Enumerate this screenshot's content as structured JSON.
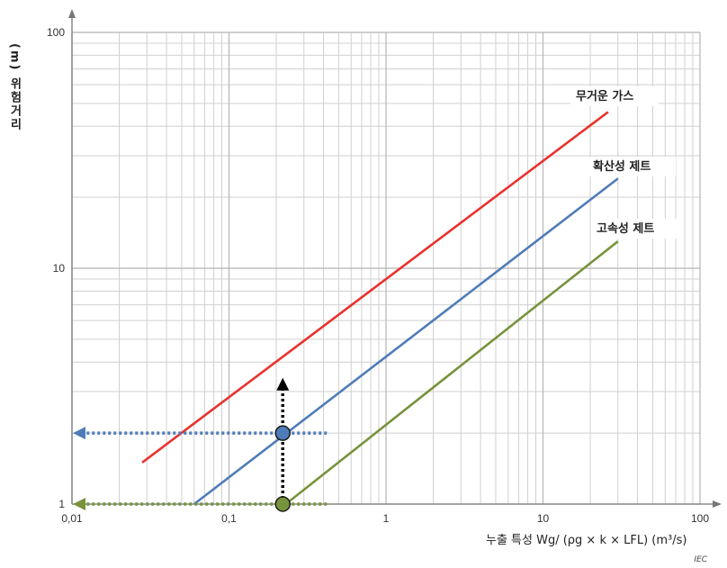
{
  "chart_data": {
    "type": "line",
    "x_scale": "log",
    "y_scale": "log",
    "xlim": [
      0.01,
      100
    ],
    "ylim": [
      1,
      100
    ],
    "x_ticks": [
      "0,01",
      "0,1",
      "1",
      "10",
      "100"
    ],
    "y_ticks": [
      "1",
      "10",
      "100"
    ],
    "ylabel": "(m) 위험거리",
    "xlabel": "누출 특성 Wg/ (ρg × k × LFL)  (m³/s)",
    "source_mark": "IEC",
    "grid": true,
    "series": [
      {
        "name": "무거운 가스",
        "color": "#e8322d",
        "x": [
          0.028,
          26
        ],
        "y": [
          1.5,
          46
        ]
      },
      {
        "name": "확산성 제트",
        "color": "#4f7cb8",
        "x": [
          0.06,
          30
        ],
        "y": [
          1.0,
          24
        ]
      },
      {
        "name": "고속성 제트",
        "color": "#77933c",
        "x": [
          0.23,
          30
        ],
        "y": [
          1.0,
          13
        ]
      }
    ],
    "annotations": {
      "marker_point_upper": {
        "x": 0.22,
        "y": 2.0,
        "color": "#4f7cb8"
      },
      "marker_point_lower": {
        "x": 0.22,
        "y": 1.0,
        "color": "#77933c"
      },
      "arrow_up": {
        "x": 0.22,
        "y_from": 1.0,
        "y_to": 3.4,
        "color": "#000000"
      },
      "arrow_left_upper": {
        "y": 2.0,
        "x_from": 0.42,
        "x_to": 0.01,
        "color": "#4f7cb8"
      },
      "arrow_left_lower": {
        "y": 1.0,
        "x_from": 0.42,
        "x_to": 0.01,
        "color": "#77933c"
      }
    }
  }
}
